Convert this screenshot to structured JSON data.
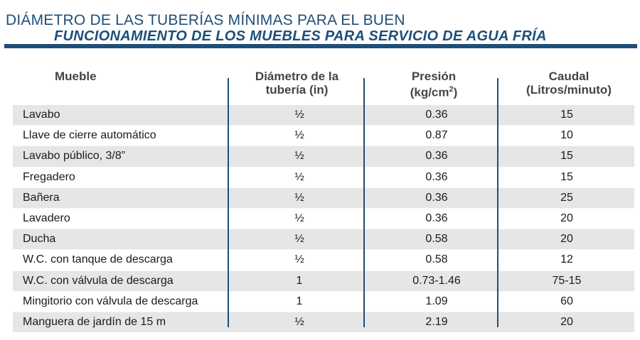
{
  "title": {
    "line1": "DIÁMETRO DE LAS TUBERÍAS MÍNIMAS PARA EL BUEN",
    "line2": "FUNCIONAMIENTO DE LOS MUEBLES PARA SERVICIO DE AGUA FRÍA"
  },
  "headers": {
    "mueble": "Mueble",
    "diametro_1": "Diámetro de la",
    "diametro_2": "tubería (in)",
    "presion_1": "Presión",
    "presion_2a": "(kg/cm",
    "presion_sup": "2",
    "presion_2b": ")",
    "caudal_1": "Caudal",
    "caudal_2": "(Litros/minuto)"
  },
  "rows": [
    {
      "mueble": "Lavabo",
      "diametro": "½",
      "presion": "0.36",
      "caudal": "15"
    },
    {
      "mueble": "Llave de cierre automático",
      "diametro": "½",
      "presion": "0.87",
      "caudal": "10"
    },
    {
      "mueble": "Lavabo público, 3/8”",
      "diametro": "½",
      "presion": "0.36",
      "caudal": "15"
    },
    {
      "mueble": "Fregadero",
      "diametro": "½",
      "presion": "0.36",
      "caudal": "15"
    },
    {
      "mueble": "Bañera",
      "diametro": "½",
      "presion": "0.36",
      "caudal": "25"
    },
    {
      "mueble": "Lavadero",
      "diametro": "½",
      "presion": "0.36",
      "caudal": "20"
    },
    {
      "mueble": "Ducha",
      "diametro": "½",
      "presion": "0.58",
      "caudal": "20"
    },
    {
      "mueble": "W.C. con tanque de descarga",
      "diametro": "½",
      "presion": "0.58",
      "caudal": "12"
    },
    {
      "mueble": "W.C. con válvula de descarga",
      "diametro": "1",
      "presion": "0.73-1.46",
      "caudal": "75-15"
    },
    {
      "mueble": "Mingitorio con válvula de descarga",
      "diametro": "1",
      "presion": "1.09",
      "caudal": "60"
    },
    {
      "mueble": "Manguera de jardín de 15 m",
      "diametro": "½",
      "presion": "2.19",
      "caudal": "20"
    }
  ],
  "colors": {
    "title": "#1f4e79",
    "shade": "#e6e6e6"
  }
}
